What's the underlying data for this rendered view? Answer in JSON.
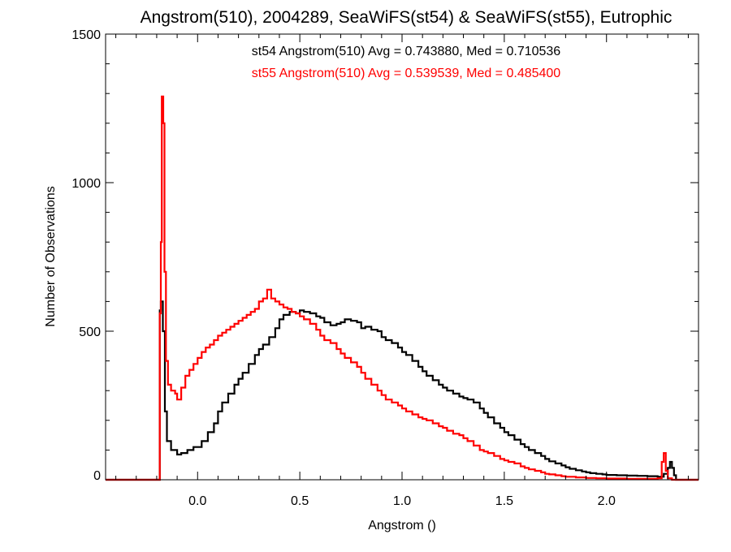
{
  "chart_data": {
    "type": "line",
    "step": true,
    "title": "Angstrom(510), 2004289, SeaWiFS(st54) & SeaWiFS(st55), Eutrophic",
    "xlabel": "Angstrom ()",
    "ylabel": "Number of Observations",
    "xlim": [
      -0.45,
      2.45
    ],
    "ylim": [
      0,
      1500
    ],
    "xticks": [
      0.0,
      0.5,
      1.0,
      1.5,
      2.0
    ],
    "xtick_labels": [
      "0.0",
      "0.5",
      "1.0",
      "1.5",
      "2.0"
    ],
    "yticks": [
      0,
      500,
      1000,
      1500
    ],
    "ytick_labels": [
      "0",
      "500",
      "1000",
      "1500"
    ],
    "grid": false,
    "annotations": [
      {
        "text": "st54 Angstrom(510) Avg = 0.743880, Med = 0.710536",
        "color": "#000000"
      },
      {
        "text": "st55 Angstrom(510) Avg = 0.539539, Med = 0.485400",
        "color": "#ff0000"
      }
    ],
    "series": [
      {
        "color": "#000000",
        "points": [
          [
            -0.45,
            0
          ],
          [
            -0.19,
            0
          ],
          [
            -0.185,
            570
          ],
          [
            -0.18,
            600
          ],
          [
            -0.17,
            500
          ],
          [
            -0.16,
            230
          ],
          [
            -0.15,
            130
          ],
          [
            -0.13,
            100
          ],
          [
            -0.1,
            85
          ],
          [
            -0.08,
            90
          ],
          [
            -0.05,
            100
          ],
          [
            -0.02,
            110
          ],
          [
            0.0,
            110
          ],
          [
            0.02,
            130
          ],
          [
            0.05,
            160
          ],
          [
            0.08,
            190
          ],
          [
            0.1,
            230
          ],
          [
            0.12,
            260
          ],
          [
            0.15,
            290
          ],
          [
            0.18,
            320
          ],
          [
            0.2,
            340
          ],
          [
            0.22,
            360
          ],
          [
            0.25,
            390
          ],
          [
            0.28,
            420
          ],
          [
            0.3,
            440
          ],
          [
            0.32,
            455
          ],
          [
            0.35,
            480
          ],
          [
            0.38,
            510
          ],
          [
            0.4,
            540
          ],
          [
            0.42,
            555
          ],
          [
            0.45,
            565
          ],
          [
            0.48,
            560
          ],
          [
            0.5,
            570
          ],
          [
            0.52,
            565
          ],
          [
            0.55,
            560
          ],
          [
            0.58,
            550
          ],
          [
            0.6,
            545
          ],
          [
            0.62,
            530
          ],
          [
            0.65,
            520
          ],
          [
            0.68,
            525
          ],
          [
            0.7,
            530
          ],
          [
            0.72,
            540
          ],
          [
            0.75,
            535
          ],
          [
            0.78,
            530
          ],
          [
            0.8,
            510
          ],
          [
            0.82,
            515
          ],
          [
            0.85,
            505
          ],
          [
            0.88,
            500
          ],
          [
            0.9,
            480
          ],
          [
            0.92,
            470
          ],
          [
            0.95,
            460
          ],
          [
            0.98,
            445
          ],
          [
            1.0,
            430
          ],
          [
            1.02,
            420
          ],
          [
            1.05,
            400
          ],
          [
            1.08,
            380
          ],
          [
            1.1,
            365
          ],
          [
            1.12,
            350
          ],
          [
            1.15,
            335
          ],
          [
            1.18,
            320
          ],
          [
            1.2,
            310
          ],
          [
            1.22,
            300
          ],
          [
            1.25,
            290
          ],
          [
            1.28,
            280
          ],
          [
            1.3,
            275
          ],
          [
            1.32,
            270
          ],
          [
            1.35,
            260
          ],
          [
            1.38,
            240
          ],
          [
            1.4,
            225
          ],
          [
            1.42,
            210
          ],
          [
            1.45,
            190
          ],
          [
            1.48,
            175
          ],
          [
            1.5,
            160
          ],
          [
            1.52,
            150
          ],
          [
            1.55,
            135
          ],
          [
            1.58,
            120
          ],
          [
            1.6,
            110
          ],
          [
            1.62,
            100
          ],
          [
            1.65,
            90
          ],
          [
            1.68,
            80
          ],
          [
            1.7,
            70
          ],
          [
            1.72,
            62
          ],
          [
            1.75,
            55
          ],
          [
            1.78,
            48
          ],
          [
            1.8,
            42
          ],
          [
            1.82,
            37
          ],
          [
            1.85,
            32
          ],
          [
            1.88,
            28
          ],
          [
            1.9,
            25
          ],
          [
            1.92,
            22
          ],
          [
            1.95,
            20
          ],
          [
            1.98,
            18
          ],
          [
            2.0,
            16
          ],
          [
            2.05,
            15
          ],
          [
            2.1,
            14
          ],
          [
            2.15,
            13
          ],
          [
            2.2,
            12
          ],
          [
            2.25,
            10
          ],
          [
            2.28,
            20
          ],
          [
            2.3,
            40
          ],
          [
            2.31,
            60
          ],
          [
            2.32,
            40
          ],
          [
            2.33,
            15
          ],
          [
            2.34,
            0
          ],
          [
            2.45,
            0
          ]
        ]
      },
      {
        "color": "#ff0000",
        "points": [
          [
            -0.45,
            0
          ],
          [
            -0.19,
            0
          ],
          [
            -0.185,
            560
          ],
          [
            -0.18,
            800
          ],
          [
            -0.175,
            1290
          ],
          [
            -0.168,
            1200
          ],
          [
            -0.162,
            700
          ],
          [
            -0.155,
            400
          ],
          [
            -0.145,
            320
          ],
          [
            -0.13,
            300
          ],
          [
            -0.11,
            290
          ],
          [
            -0.1,
            270
          ],
          [
            -0.08,
            310
          ],
          [
            -0.06,
            350
          ],
          [
            -0.04,
            370
          ],
          [
            -0.02,
            390
          ],
          [
            0.0,
            410
          ],
          [
            0.02,
            430
          ],
          [
            0.04,
            445
          ],
          [
            0.06,
            455
          ],
          [
            0.08,
            470
          ],
          [
            0.1,
            485
          ],
          [
            0.12,
            495
          ],
          [
            0.14,
            505
          ],
          [
            0.16,
            515
          ],
          [
            0.18,
            525
          ],
          [
            0.2,
            535
          ],
          [
            0.22,
            545
          ],
          [
            0.24,
            555
          ],
          [
            0.26,
            565
          ],
          [
            0.28,
            575
          ],
          [
            0.3,
            600
          ],
          [
            0.32,
            610
          ],
          [
            0.34,
            640
          ],
          [
            0.36,
            610
          ],
          [
            0.38,
            600
          ],
          [
            0.4,
            590
          ],
          [
            0.42,
            580
          ],
          [
            0.44,
            575
          ],
          [
            0.46,
            565
          ],
          [
            0.48,
            560
          ],
          [
            0.5,
            550
          ],
          [
            0.52,
            540
          ],
          [
            0.55,
            525
          ],
          [
            0.58,
            505
          ],
          [
            0.6,
            485
          ],
          [
            0.62,
            470
          ],
          [
            0.65,
            460
          ],
          [
            0.68,
            440
          ],
          [
            0.7,
            425
          ],
          [
            0.72,
            410
          ],
          [
            0.75,
            395
          ],
          [
            0.78,
            380
          ],
          [
            0.8,
            360
          ],
          [
            0.82,
            340
          ],
          [
            0.85,
            320
          ],
          [
            0.88,
            300
          ],
          [
            0.9,
            285
          ],
          [
            0.92,
            270
          ],
          [
            0.95,
            260
          ],
          [
            0.98,
            250
          ],
          [
            1.0,
            240
          ],
          [
            1.02,
            230
          ],
          [
            1.05,
            220
          ],
          [
            1.08,
            210
          ],
          [
            1.1,
            205
          ],
          [
            1.12,
            200
          ],
          [
            1.15,
            190
          ],
          [
            1.18,
            180
          ],
          [
            1.2,
            175
          ],
          [
            1.22,
            165
          ],
          [
            1.25,
            155
          ],
          [
            1.28,
            150
          ],
          [
            1.3,
            140
          ],
          [
            1.32,
            130
          ],
          [
            1.35,
            115
          ],
          [
            1.38,
            100
          ],
          [
            1.4,
            95
          ],
          [
            1.42,
            90
          ],
          [
            1.45,
            80
          ],
          [
            1.48,
            70
          ],
          [
            1.5,
            65
          ],
          [
            1.52,
            60
          ],
          [
            1.55,
            55
          ],
          [
            1.58,
            45
          ],
          [
            1.6,
            40
          ],
          [
            1.62,
            35
          ],
          [
            1.65,
            30
          ],
          [
            1.68,
            25
          ],
          [
            1.7,
            20
          ],
          [
            1.72,
            18
          ],
          [
            1.75,
            15
          ],
          [
            1.78,
            12
          ],
          [
            1.8,
            10
          ],
          [
            1.85,
            8
          ],
          [
            1.9,
            6
          ],
          [
            1.95,
            5
          ],
          [
            2.0,
            4
          ],
          [
            2.1,
            3
          ],
          [
            2.2,
            3
          ],
          [
            2.25,
            5
          ],
          [
            2.27,
            60
          ],
          [
            2.28,
            90
          ],
          [
            2.29,
            30
          ],
          [
            2.3,
            5
          ],
          [
            2.32,
            0
          ],
          [
            2.45,
            0
          ]
        ]
      }
    ]
  }
}
